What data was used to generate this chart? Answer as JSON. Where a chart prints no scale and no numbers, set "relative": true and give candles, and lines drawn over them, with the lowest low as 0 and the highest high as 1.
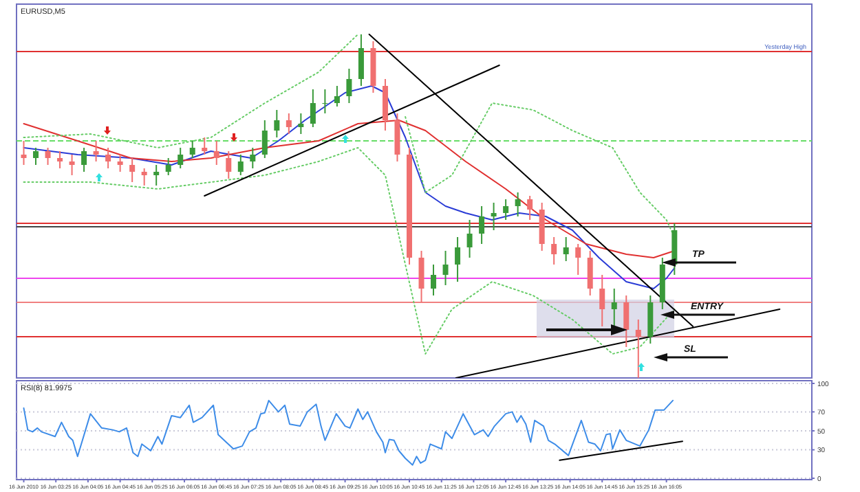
{
  "chart_data": [
    {
      "type": "candlestick",
      "title": "EURUSD,M5",
      "relative": true,
      "xlim": [
        "2010-06-16T02:36",
        "2010-06-16T19:06"
      ],
      "x": [
        "2010-06-16T02:45",
        "2010-06-16T03:00",
        "2010-06-16T03:15",
        "2010-06-16T03:30",
        "2010-06-16T03:45",
        "2010-06-16T04:00",
        "2010-06-16T04:15",
        "2010-06-16T04:30",
        "2010-06-16T04:45",
        "2010-06-16T05:00",
        "2010-06-16T05:15",
        "2010-06-16T05:30",
        "2010-06-16T05:45",
        "2010-06-16T06:00",
        "2010-06-16T06:15",
        "2010-06-16T06:30",
        "2010-06-16T06:45",
        "2010-06-16T07:00",
        "2010-06-16T07:15",
        "2010-06-16T07:30",
        "2010-06-16T07:45",
        "2010-06-16T08:00",
        "2010-06-16T08:15",
        "2010-06-16T08:30",
        "2010-06-16T08:45",
        "2010-06-16T09:00",
        "2010-06-16T09:15",
        "2010-06-16T09:30",
        "2010-06-16T09:45",
        "2010-06-16T10:00",
        "2010-06-16T10:15",
        "2010-06-16T10:30",
        "2010-06-16T10:45",
        "2010-06-16T11:00",
        "2010-06-16T11:15",
        "2010-06-16T11:30",
        "2010-06-16T11:45",
        "2010-06-16T12:00",
        "2010-06-16T12:15",
        "2010-06-16T12:30",
        "2010-06-16T12:45",
        "2010-06-16T13:00",
        "2010-06-16T13:15",
        "2010-06-16T13:30",
        "2010-06-16T13:45",
        "2010-06-16T14:00",
        "2010-06-16T14:15",
        "2010-06-16T14:30",
        "2010-06-16T14:45",
        "2010-06-16T15:00",
        "2010-06-16T15:15",
        "2010-06-16T15:30",
        "2010-06-16T15:45",
        "2010-06-16T16:00",
        "2010-06-16T16:15"
      ],
      "ohlc": [
        [
          0.65,
          0.69,
          0.62,
          0.64
        ],
        [
          0.64,
          0.67,
          0.62,
          0.66
        ],
        [
          0.66,
          0.67,
          0.62,
          0.64
        ],
        [
          0.64,
          0.66,
          0.61,
          0.63
        ],
        [
          0.63,
          0.65,
          0.59,
          0.62
        ],
        [
          0.62,
          0.67,
          0.6,
          0.66
        ],
        [
          0.66,
          0.69,
          0.63,
          0.65
        ],
        [
          0.65,
          0.67,
          0.61,
          0.63
        ],
        [
          0.63,
          0.65,
          0.6,
          0.62
        ],
        [
          0.62,
          0.64,
          0.57,
          0.6
        ],
        [
          0.6,
          0.61,
          0.56,
          0.59
        ],
        [
          0.59,
          0.62,
          0.56,
          0.6
        ],
        [
          0.6,
          0.64,
          0.59,
          0.62
        ],
        [
          0.62,
          0.67,
          0.61,
          0.65
        ],
        [
          0.65,
          0.69,
          0.64,
          0.67
        ],
        [
          0.67,
          0.7,
          0.65,
          0.66
        ],
        [
          0.66,
          0.69,
          0.62,
          0.64
        ],
        [
          0.64,
          0.66,
          0.58,
          0.6
        ],
        [
          0.6,
          0.65,
          0.59,
          0.63
        ],
        [
          0.63,
          0.67,
          0.61,
          0.65
        ],
        [
          0.65,
          0.75,
          0.64,
          0.72
        ],
        [
          0.72,
          0.78,
          0.7,
          0.75
        ],
        [
          0.75,
          0.77,
          0.71,
          0.73
        ],
        [
          0.73,
          0.77,
          0.71,
          0.74
        ],
        [
          0.74,
          0.84,
          0.73,
          0.8
        ],
        [
          0.8,
          0.84,
          0.77,
          0.8
        ],
        [
          0.8,
          0.85,
          0.79,
          0.82
        ],
        [
          0.82,
          0.9,
          0.8,
          0.87
        ],
        [
          0.87,
          1,
          0.85,
          0.96
        ],
        [
          0.96,
          0.98,
          0.83,
          0.85
        ],
        [
          0.85,
          0.87,
          0.72,
          0.75
        ],
        [
          0.75,
          0.77,
          0.63,
          0.65
        ],
        [
          0.65,
          0.67,
          0.33,
          0.35
        ],
        [
          0.35,
          0.37,
          0.22,
          0.26
        ],
        [
          0.26,
          0.33,
          0.24,
          0.3
        ],
        [
          0.3,
          0.37,
          0.27,
          0.33
        ],
        [
          0.33,
          0.41,
          0.28,
          0.38
        ],
        [
          0.38,
          0.46,
          0.35,
          0.42
        ],
        [
          0.42,
          0.5,
          0.39,
          0.47
        ],
        [
          0.47,
          0.51,
          0.43,
          0.48
        ],
        [
          0.48,
          0.52,
          0.46,
          0.5
        ],
        [
          0.5,
          0.54,
          0.47,
          0.52
        ],
        [
          0.52,
          0.53,
          0.46,
          0.49
        ],
        [
          0.49,
          0.51,
          0.37,
          0.39
        ],
        [
          0.39,
          0.41,
          0.33,
          0.36
        ],
        [
          0.36,
          0.41,
          0.34,
          0.38
        ],
        [
          0.38,
          0.39,
          0.3,
          0.35
        ],
        [
          0.35,
          0.37,
          0.24,
          0.26
        ],
        [
          0.26,
          0.3,
          0.15,
          0.2
        ],
        [
          0.2,
          0.26,
          0.15,
          0.22
        ],
        [
          0.22,
          0.24,
          0.09,
          0.14
        ],
        [
          0.14,
          0.17,
          0,
          0.12
        ],
        [
          0.12,
          0.24,
          0.1,
          0.22
        ],
        [
          0.22,
          0.35,
          0.2,
          0.33
        ],
        [
          0.33,
          0.45,
          0.3,
          0.43
        ]
      ],
      "series": [
        {
          "type": "line",
          "color": "#2a3cd6",
          "x": [
            "2010-06-16T02:45",
            "2010-06-16T03:52",
            "2010-06-16T04:58",
            "2010-06-16T05:49",
            "2010-06-16T06:38",
            "2010-06-16T07:28",
            "2010-06-16T08:02",
            "2010-06-16T08:35",
            "2010-06-16T09:25",
            "2010-06-16T09:58",
            "2010-06-16T10:15",
            "2010-06-16T10:40",
            "2010-06-16T11:05",
            "2010-06-16T11:30",
            "2010-06-16T11:55",
            "2010-06-16T12:28",
            "2010-06-16T13:02",
            "2010-06-16T13:35",
            "2010-06-16T14:08",
            "2010-06-16T14:41",
            "2010-06-16T15:15",
            "2010-06-16T15:49",
            "2010-06-16T16:05",
            "2010-06-16T16:15"
          ],
          "values": [
            0.67,
            0.65,
            0.64,
            0.62,
            0.66,
            0.64,
            0.69,
            0.75,
            0.83,
            0.85,
            0.83,
            0.7,
            0.54,
            0.5,
            0.48,
            0.46,
            0.48,
            0.47,
            0.43,
            0.35,
            0.28,
            0.26,
            0.29,
            0.32
          ]
        },
        {
          "type": "line",
          "color": "#e03030",
          "x": [
            "2010-06-16T02:45",
            "2010-06-16T03:52",
            "2010-06-16T04:58",
            "2010-06-16T05:49",
            "2010-06-16T06:38",
            "2010-06-16T07:45",
            "2010-06-16T08:52",
            "2010-06-16T09:41",
            "2010-06-16T10:32",
            "2010-06-16T11:05",
            "2010-06-16T11:55",
            "2010-06-16T12:45",
            "2010-06-16T13:35",
            "2010-06-16T14:25",
            "2010-06-16T15:15",
            "2010-06-16T15:49",
            "2010-06-16T16:15"
          ],
          "values": [
            0.74,
            0.69,
            0.64,
            0.63,
            0.64,
            0.67,
            0.69,
            0.74,
            0.75,
            0.72,
            0.63,
            0.55,
            0.46,
            0.39,
            0.36,
            0.35,
            0.37
          ]
        },
        {
          "type": "line",
          "color": "#66cc66",
          "line_style": "dotted",
          "x": [
            "2010-06-16T02:45",
            "2010-06-16T04:08",
            "2010-06-16T05:32",
            "2010-06-16T06:38",
            "2010-06-16T07:45",
            "2010-06-16T08:52",
            "2010-06-16T09:41",
            "2010-06-16T10:02",
            "2010-06-16T10:23",
            "2010-06-16T10:40",
            "2010-06-16T11:05",
            "2010-06-16T11:38",
            "2010-06-16T12:28",
            "2010-06-16T13:19",
            "2010-06-16T14:08",
            "2010-06-16T14:58",
            "2010-06-16T15:32",
            "2010-06-16T16:05",
            "2010-06-16T16:15"
          ],
          "values": [
            0.7,
            0.71,
            0.67,
            0.7,
            0.8,
            0.89,
            1,
            null,
            null,
            0.76,
            0.54,
            0.59,
            0.8,
            0.78,
            0.72,
            0.67,
            0.54,
            0.46,
            0.41
          ]
        },
        {
          "type": "line",
          "color": "#66cc66",
          "line_style": "dotted",
          "x": [
            "2010-06-16T02:45",
            "2010-06-16T04:08",
            "2010-06-16T05:32",
            "2010-06-16T06:38",
            "2010-06-16T07:45",
            "2010-06-16T08:52",
            "2010-06-16T09:41",
            "2010-06-16T10:15",
            "2010-06-16T10:40",
            "2010-06-16T11:05",
            "2010-06-16T11:38",
            "2010-06-16T12:28",
            "2010-06-16T13:19",
            "2010-06-16T14:08",
            "2010-06-16T14:58",
            "2010-06-16T15:32",
            "2010-06-16T16:15"
          ],
          "values": [
            0.57,
            0.57,
            0.55,
            0.57,
            0.59,
            0.63,
            0.67,
            0.59,
            0.33,
            0.07,
            0.2,
            0.28,
            0.24,
            0.17,
            0.07,
            0.09,
            0.2
          ]
        },
        {
          "type": "line",
          "color": "#000000",
          "x": [
            "2010-06-16T06:30",
            "2010-06-16T12:37"
          ],
          "values": [
            0.53,
            0.91
          ]
        },
        {
          "type": "line",
          "color": "#000000",
          "x": [
            "2010-06-16T09:55",
            "2010-06-16T16:38"
          ],
          "values": [
            1,
            0.15
          ]
        },
        {
          "type": "line",
          "color": "#000000",
          "x": [
            "2010-06-16T11:43",
            "2010-06-16T18:26"
          ],
          "values": [
            0,
            0.2
          ]
        }
      ],
      "ref_lines": [
        {
          "axis": "y",
          "value": 0.95,
          "label": "Yesterday High",
          "color": "#e03030"
        },
        {
          "axis": "y",
          "value": 0.69,
          "color": "#66dd66",
          "line_style": "dashed"
        },
        {
          "axis": "y",
          "value": 0.45,
          "color": "#e03030"
        },
        {
          "axis": "y",
          "value": 0.44,
          "color": "#444444"
        },
        {
          "axis": "y",
          "value": 0.29,
          "color": "#ee44ee"
        },
        {
          "axis": "y",
          "value": 0.22,
          "color": "#f08080"
        },
        {
          "axis": "y",
          "value": 0.12,
          "color": "#e03030"
        }
      ],
      "annotations": [
        "TP",
        "ENTRY",
        "SL"
      ]
    },
    {
      "type": "line",
      "title": "RSI(8) 81.9975",
      "xlim": [
        "2010-06-16T02:36",
        "2010-06-16T19:06"
      ],
      "ylim": [
        0,
        100
      ],
      "yticks": [
        0,
        30,
        50,
        70,
        100
      ],
      "grid": "y",
      "xticks": [
        {
          "value": "2010-06-16T02:45",
          "label": "16 Jun 2010"
        },
        {
          "value": "2010-06-16T03:25",
          "label": "16 Jun 03:25"
        },
        {
          "value": "2010-06-16T04:05",
          "label": "16 Jun 04:05"
        },
        {
          "value": "2010-06-16T04:45",
          "label": "16 Jun 04:45"
        },
        {
          "value": "2010-06-16T05:25",
          "label": "16 Jun 05:25"
        },
        {
          "value": "2010-06-16T06:05",
          "label": "16 Jun 06:05"
        },
        {
          "value": "2010-06-16T06:45",
          "label": "16 Jun 06:45"
        },
        {
          "value": "2010-06-16T07:25",
          "label": "16 Jun 07:25"
        },
        {
          "value": "2010-06-16T08:05",
          "label": "16 Jun 08:05"
        },
        {
          "value": "2010-06-16T08:45",
          "label": "16 Jun 08:45"
        },
        {
          "value": "2010-06-16T09:25",
          "label": "16 Jun 09:25"
        },
        {
          "value": "2010-06-16T10:05",
          "label": "16 Jun 10:05"
        },
        {
          "value": "2010-06-16T10:45",
          "label": "16 Jun 10:45"
        },
        {
          "value": "2010-06-16T11:25",
          "label": "16 Jun 11:25"
        },
        {
          "value": "2010-06-16T12:05",
          "label": "16 Jun 12:05"
        },
        {
          "value": "2010-06-16T12:45",
          "label": "16 Jun 12:45"
        },
        {
          "value": "2010-06-16T13:25",
          "label": "16 Jun 13:25"
        },
        {
          "value": "2010-06-16T14:05",
          "label": "16 Jun 14:05"
        },
        {
          "value": "2010-06-16T14:45",
          "label": "16 Jun 14:45"
        },
        {
          "value": "2010-06-16T15:25",
          "label": "16 Jun 15:25"
        },
        {
          "value": "2010-06-16T16:05",
          "label": "16 Jun 16:05"
        }
      ],
      "series": [
        {
          "color": "#3d8ce8",
          "x": [
            "2010-06-16T02:45",
            "2010-06-16T02:50",
            "2010-06-16T02:56",
            "2010-06-16T03:02",
            "2010-06-16T03:07",
            "2010-06-16T03:24",
            "2010-06-16T03:32",
            "2010-06-16T03:41",
            "2010-06-16T03:46",
            "2010-06-16T03:52",
            "2010-06-16T04:08",
            "2010-06-16T04:22",
            "2010-06-16T04:36",
            "2010-06-16T04:44",
            "2010-06-16T04:53",
            "2010-06-16T05:01",
            "2010-06-16T05:07",
            "2010-06-16T05:12",
            "2010-06-16T05:23",
            "2010-06-16T05:32",
            "2010-06-16T05:37",
            "2010-06-16T05:49",
            "2010-06-16T06:00",
            "2010-06-16T06:11",
            "2010-06-16T06:16",
            "2010-06-16T06:27",
            "2010-06-16T06:41",
            "2010-06-16T06:47",
            "2010-06-16T07:06",
            "2010-06-16T07:17",
            "2010-06-16T07:26",
            "2010-06-16T07:34",
            "2010-06-16T07:40",
            "2010-06-16T07:45",
            "2010-06-16T07:50",
            "2010-06-16T08:02",
            "2010-06-16T08:10",
            "2010-06-16T08:16",
            "2010-06-16T08:29",
            "2010-06-16T08:38",
            "2010-06-16T08:49",
            "2010-06-16T08:55",
            "2010-06-16T09:00",
            "2010-06-16T09:14",
            "2010-06-16T09:25",
            "2010-06-16T09:31",
            "2010-06-16T09:41",
            "2010-06-16T09:47",
            "2010-06-16T09:53",
            "2010-06-16T10:04",
            "2010-06-16T10:12",
            "2010-06-16T10:15",
            "2010-06-16T10:20",
            "2010-06-16T10:26",
            "2010-06-16T10:32",
            "2010-06-16T10:40",
            "2010-06-16T10:49",
            "2010-06-16T10:54",
            "2010-06-16T10:59",
            "2010-06-16T11:05",
            "2010-06-16T11:11",
            "2010-06-16T11:25",
            "2010-06-16T11:30",
            "2010-06-16T11:38",
            "2010-06-16T11:52",
            "2010-06-16T12:06",
            "2010-06-16T12:17",
            "2010-06-16T12:23",
            "2010-06-16T12:31",
            "2010-06-16T12:45",
            "2010-06-16T12:53",
            "2010-06-16T12:59",
            "2010-06-16T13:04",
            "2010-06-16T13:10",
            "2010-06-16T13:16",
            "2010-06-16T13:21",
            "2010-06-16T13:32",
            "2010-06-16T13:38",
            "2010-06-16T13:46",
            "2010-06-16T14:03",
            "2010-06-16T14:19",
            "2010-06-16T14:28",
            "2010-06-16T14:36",
            "2010-06-16T14:43",
            "2010-06-16T14:50",
            "2010-06-16T14:55",
            "2010-06-16T14:58",
            "2010-06-16T15:07",
            "2010-06-16T15:15",
            "2010-06-16T15:32",
            "2010-06-16T15:43",
            "2010-06-16T15:51",
            "2010-06-16T16:02",
            "2010-06-16T16:13"
          ],
          "values": [
            74,
            51,
            49,
            53,
            49,
            44,
            59,
            44,
            40,
            23,
            68,
            53,
            51,
            49,
            53,
            27,
            23,
            36,
            29,
            44,
            36,
            66,
            64,
            77,
            59,
            64,
            77,
            46,
            31,
            34,
            49,
            53,
            68,
            69,
            82,
            70,
            77,
            57,
            55,
            70,
            78,
            55,
            40,
            68,
            55,
            53,
            73,
            62,
            70,
            49,
            38,
            27,
            41,
            40,
            29,
            21,
            14,
            23,
            16,
            19,
            36,
            31,
            49,
            42,
            68,
            46,
            51,
            44,
            55,
            68,
            70,
            59,
            66,
            57,
            38,
            61,
            55,
            40,
            36,
            24,
            61,
            38,
            36,
            29,
            46,
            47,
            31,
            51,
            40,
            34,
            51,
            72,
            72,
            82
          ]
        },
        {
          "color": "#000000",
          "x": [
            "2010-06-16T13:52",
            "2010-06-16T16:25"
          ],
          "values": [
            19,
            39
          ]
        }
      ]
    }
  ]
}
